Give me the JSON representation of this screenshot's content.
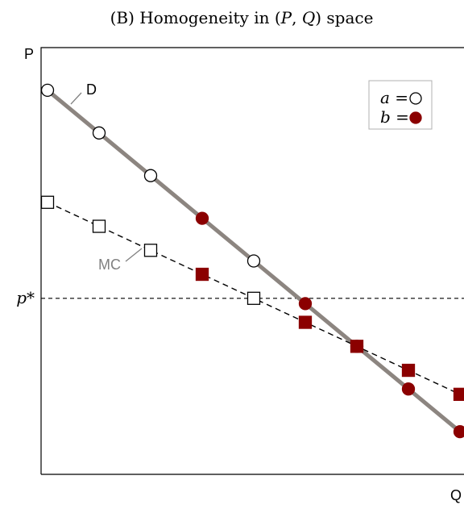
{
  "chart_data": {
    "type": "line",
    "title": {
      "prefix": "(B) Homogeneity in (",
      "var1": "P",
      "sep": ", ",
      "var2": "Q",
      "suffix": ") space"
    },
    "xlabel": "Q",
    "ylabel": "P",
    "xlim": [
      0,
      8
    ],
    "ylim": [
      0,
      8
    ],
    "reference_line": {
      "label": "p*",
      "y": 3.3
    },
    "legend": {
      "position": "top-right",
      "entries": [
        {
          "var": "a",
          "eq": "=",
          "marker": "circle",
          "fill": "#ffffff"
        },
        {
          "var": "b",
          "eq": "=",
          "marker": "circle",
          "fill": "#8b0000"
        }
      ]
    },
    "series": [
      {
        "name": "D",
        "line_color": "#8c8580",
        "line_style": "solid",
        "marker": "circle",
        "points": [
          {
            "x": 0,
            "y": 7.2,
            "group": "a"
          },
          {
            "x": 1,
            "y": 6.4,
            "group": "a"
          },
          {
            "x": 2,
            "y": 5.6,
            "group": "a"
          },
          {
            "x": 3,
            "y": 4.8,
            "group": "b"
          },
          {
            "x": 4,
            "y": 4.0,
            "group": "a"
          },
          {
            "x": 5,
            "y": 3.2,
            "group": "b"
          },
          {
            "x": 6,
            "y": 2.4,
            "group": "b"
          },
          {
            "x": 7,
            "y": 1.6,
            "group": "b"
          },
          {
            "x": 8,
            "y": 0.8,
            "group": "b"
          }
        ]
      },
      {
        "name": "MC",
        "line_color": "#000000",
        "line_style": "dashed",
        "marker": "square",
        "points": [
          {
            "x": 0,
            "y": 5.1,
            "group": "a"
          },
          {
            "x": 1,
            "y": 4.65,
            "group": "a"
          },
          {
            "x": 2,
            "y": 4.2,
            "group": "a"
          },
          {
            "x": 3,
            "y": 3.75,
            "group": "b"
          },
          {
            "x": 4,
            "y": 3.3,
            "group": "a"
          },
          {
            "x": 5,
            "y": 2.85,
            "group": "b"
          },
          {
            "x": 6,
            "y": 2.4,
            "group": "b"
          },
          {
            "x": 7,
            "y": 1.95,
            "group": "b"
          },
          {
            "x": 8,
            "y": 1.5,
            "group": "b"
          }
        ]
      }
    ],
    "colors": {
      "a": "#ffffff",
      "b": "#8b0000",
      "stroke": "#000000",
      "label": "#808080"
    }
  }
}
